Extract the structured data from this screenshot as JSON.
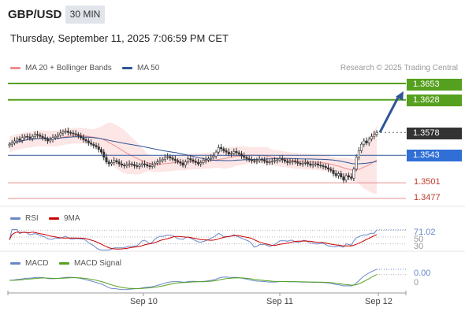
{
  "header": {
    "pair": "GBP/USD",
    "timeframe": "30 MIN",
    "datetime": "Thursday, September 11, 2025 7:06:59 PM CET",
    "credit": "Research © 2025 Trading Central"
  },
  "legend": {
    "ma20_label": "MA 20 + Bollinger Bands",
    "ma50_label": "MA 50",
    "rsi_label": "RSI",
    "rsi_ma_label": "9MA",
    "macd_label": "MACD",
    "macd_signal_label": "MACD Signal"
  },
  "colors": {
    "ma20": "#f08c8c",
    "ma50": "#2f5597",
    "bollinger_fill": "#fde2e2",
    "resistance": "#55a01e",
    "support": "#e06666",
    "pivot": "#2f5597",
    "last_price": "#333333",
    "arrow": "#2f5597",
    "rsi": "#6a87c8",
    "rsi_ma": "#cc0000",
    "macd": "#6a87c8",
    "macd_signal": "#55a01e",
    "candle": "#333333"
  },
  "chart_data": [
    {
      "type": "candlestick",
      "title": "GBP/USD 30 MIN",
      "x_ticks": [
        "Sep 10",
        "Sep 11",
        "Sep 12"
      ],
      "ylim": [
        1.3465,
        1.3665
      ],
      "price_levels": [
        {
          "name": "resistance",
          "value": 1.3653,
          "label": "1.3653"
        },
        {
          "name": "resistance",
          "value": 1.3628,
          "label": "1.3628"
        },
        {
          "name": "last",
          "value": 1.3578,
          "label": "1.3578"
        },
        {
          "name": "pivot",
          "value": 1.3543,
          "label": "1.3543"
        },
        {
          "name": "support",
          "value": 1.3501,
          "label": "1.3501"
        },
        {
          "name": "support",
          "value": 1.3477,
          "label": "1.3477"
        }
      ],
      "target_arrow": {
        "from": 1.3578,
        "to": 1.3641
      },
      "close": [
        1.356,
        1.3562,
        1.3565,
        1.3568,
        1.3566,
        1.357,
        1.3572,
        1.3571,
        1.3569,
        1.3572,
        1.3575,
        1.3574,
        1.3572,
        1.357,
        1.3568,
        1.3565,
        1.3567,
        1.357,
        1.3572,
        1.3574,
        1.3577,
        1.3579,
        1.358,
        1.3578,
        1.3577,
        1.3576,
        1.3575,
        1.3573,
        1.357,
        1.3567,
        1.3565,
        1.3562,
        1.356,
        1.3558,
        1.3556,
        1.3552,
        1.3548,
        1.354,
        1.3533,
        1.353,
        1.3532,
        1.3535,
        1.3533,
        1.353,
        1.3528,
        1.3527,
        1.3529,
        1.353,
        1.3529,
        1.3527,
        1.3526,
        1.3528,
        1.353,
        1.3529,
        1.3527,
        1.3526,
        1.3528,
        1.3531,
        1.3533,
        1.3535,
        1.3537,
        1.354,
        1.3541,
        1.3539,
        1.3537,
        1.3535,
        1.3533,
        1.3531,
        1.3528,
        1.3533,
        1.3538,
        1.3536,
        1.3534,
        1.3532,
        1.353,
        1.3532,
        1.3535,
        1.3536,
        1.3538,
        1.354,
        1.3542,
        1.3548,
        1.3555,
        1.3553,
        1.355,
        1.3548,
        1.3545,
        1.3546,
        1.3549,
        1.3547,
        1.3545,
        1.3542,
        1.354,
        1.3538,
        1.3536,
        1.3535,
        1.3534,
        1.3535,
        1.3537,
        1.3536,
        1.3534,
        1.3532,
        1.3533,
        1.3534,
        1.3535,
        1.3536,
        1.3538,
        1.3536,
        1.3534,
        1.3532,
        1.3533,
        1.3534,
        1.3533,
        1.3531,
        1.353,
        1.3531,
        1.3532,
        1.353,
        1.3528,
        1.3529,
        1.353,
        1.3528,
        1.3527,
        1.3526,
        1.3524,
        1.3522,
        1.352,
        1.3515,
        1.3512,
        1.3515,
        1.351,
        1.3505,
        1.3512,
        1.351,
        1.3508,
        1.3522,
        1.354,
        1.355,
        1.356,
        1.3565,
        1.3562,
        1.3568,
        1.3572,
        1.3575,
        1.3578
      ]
    },
    {
      "type": "line",
      "title": "RSI",
      "series": [
        {
          "name": "RSI"
        },
        {
          "name": "9MA"
        }
      ],
      "value_labels": [
        "71.02",
        "50",
        "30"
      ],
      "rsi_last": 71.02
    },
    {
      "type": "line",
      "title": "MACD",
      "series": [
        {
          "name": "MACD"
        },
        {
          "name": "MACD Signal"
        }
      ],
      "value_labels": [
        "0.00",
        "0"
      ]
    }
  ]
}
